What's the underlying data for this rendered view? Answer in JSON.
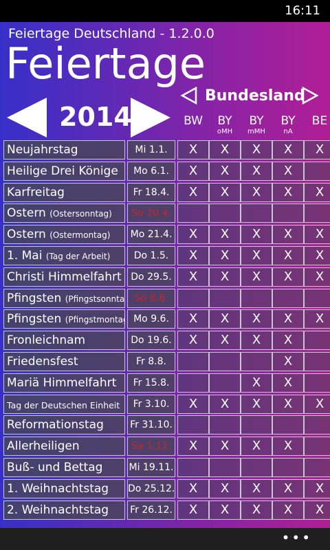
{
  "status": {
    "time": "16:11"
  },
  "header": {
    "app_title": "Feiertage Deutschland - 1.2.0.0",
    "page_title": "Feiertage"
  },
  "year_nav": {
    "year": "2014"
  },
  "state_nav": {
    "label": "Bundesland"
  },
  "columns": [
    {
      "code": "BW",
      "sub": ""
    },
    {
      "code": "BY",
      "sub": "oMH"
    },
    {
      "code": "BY",
      "sub": "mMH"
    },
    {
      "code": "BY",
      "sub": "nA"
    },
    {
      "code": "BE",
      "sub": ""
    }
  ],
  "holidays": [
    {
      "name": "Neujahrstag",
      "sub": "",
      "date": "Mi 1.1.",
      "sunday": false,
      "small": false,
      "marks": [
        "X",
        "X",
        "X",
        "X",
        "X"
      ]
    },
    {
      "name": "Heilige Drei Könige",
      "sub": "",
      "date": "Mo 6.1.",
      "sunday": false,
      "small": false,
      "marks": [
        "X",
        "X",
        "X",
        "X",
        ""
      ]
    },
    {
      "name": "Karfreitag",
      "sub": "",
      "date": "Fr 18.4.",
      "sunday": false,
      "small": false,
      "marks": [
        "X",
        "X",
        "X",
        "X",
        "X"
      ]
    },
    {
      "name": "Ostern",
      "sub": "(Ostersonntag)",
      "date": "So 20.4.",
      "sunday": true,
      "small": false,
      "marks": [
        "",
        "",
        "",
        "",
        ""
      ]
    },
    {
      "name": "Ostern",
      "sub": "(Ostermontag)",
      "date": "Mo 21.4.",
      "sunday": false,
      "small": false,
      "marks": [
        "X",
        "X",
        "X",
        "X",
        "X"
      ]
    },
    {
      "name": "1. Mai",
      "sub": "(Tag der Arbeit)",
      "date": "Do 1.5.",
      "sunday": false,
      "small": false,
      "marks": [
        "X",
        "X",
        "X",
        "X",
        "X"
      ]
    },
    {
      "name": "Christi Himmelfahrt",
      "sub": "",
      "date": "Do 29.5.",
      "sunday": false,
      "small": false,
      "marks": [
        "X",
        "X",
        "X",
        "X",
        "X"
      ]
    },
    {
      "name": "Pfingsten",
      "sub": "(Pfingstsonntag)",
      "date": "So 8.6.",
      "sunday": true,
      "small": false,
      "marks": [
        "",
        "",
        "",
        "",
        ""
      ]
    },
    {
      "name": "Pfingsten",
      "sub": "(Pfingstmontag)",
      "date": "Mo 9.6.",
      "sunday": false,
      "small": false,
      "marks": [
        "X",
        "X",
        "X",
        "X",
        "X"
      ]
    },
    {
      "name": "Fronleichnam",
      "sub": "",
      "date": "Do 19.6.",
      "sunday": false,
      "small": false,
      "marks": [
        "X",
        "X",
        "X",
        "X",
        ""
      ]
    },
    {
      "name": "Friedensfest",
      "sub": "",
      "date": "Fr 8.8.",
      "sunday": false,
      "small": false,
      "marks": [
        "",
        "",
        "",
        "X",
        ""
      ]
    },
    {
      "name": "Mariä Himmelfahrt",
      "sub": "",
      "date": "Fr 15.8.",
      "sunday": false,
      "small": false,
      "marks": [
        "",
        "",
        "X",
        "X",
        ""
      ]
    },
    {
      "name": "Tag der Deutschen Einheit",
      "sub": "",
      "date": "Fr 3.10.",
      "sunday": false,
      "small": true,
      "marks": [
        "X",
        "X",
        "X",
        "X",
        "X"
      ]
    },
    {
      "name": "Reformationstag",
      "sub": "",
      "date": "Fr 31.10.",
      "sunday": false,
      "small": false,
      "marks": [
        "",
        "",
        "",
        "",
        ""
      ]
    },
    {
      "name": "Allerheiligen",
      "sub": "",
      "date": "Sa 1.11.",
      "sunday": true,
      "small": false,
      "marks": [
        "X",
        "X",
        "X",
        "X",
        ""
      ]
    },
    {
      "name": "Buß- und Bettag",
      "sub": "",
      "date": "Mi 19.11.",
      "sunday": false,
      "small": false,
      "marks": [
        "",
        "",
        "",
        "",
        ""
      ]
    },
    {
      "name": "1. Weihnachtstag",
      "sub": "",
      "date": "Do 25.12.",
      "sunday": false,
      "small": false,
      "marks": [
        "X",
        "X",
        "X",
        "X",
        "X"
      ]
    },
    {
      "name": "2. Weihnachtstag",
      "sub": "",
      "date": "Fr 26.12.",
      "sunday": false,
      "small": false,
      "marks": [
        "X",
        "X",
        "X",
        "X",
        "X"
      ]
    }
  ],
  "appbar": {
    "more": "•••"
  },
  "colors": {
    "sunday_date": "#c12828",
    "gradient_left": "#3730c8",
    "gradient_right": "#b11e95"
  },
  "icons": {
    "year_prev": "triangle-left-filled",
    "year_next": "triangle-right-filled",
    "state_prev": "triangle-left-outline",
    "state_next": "triangle-right-outline"
  }
}
